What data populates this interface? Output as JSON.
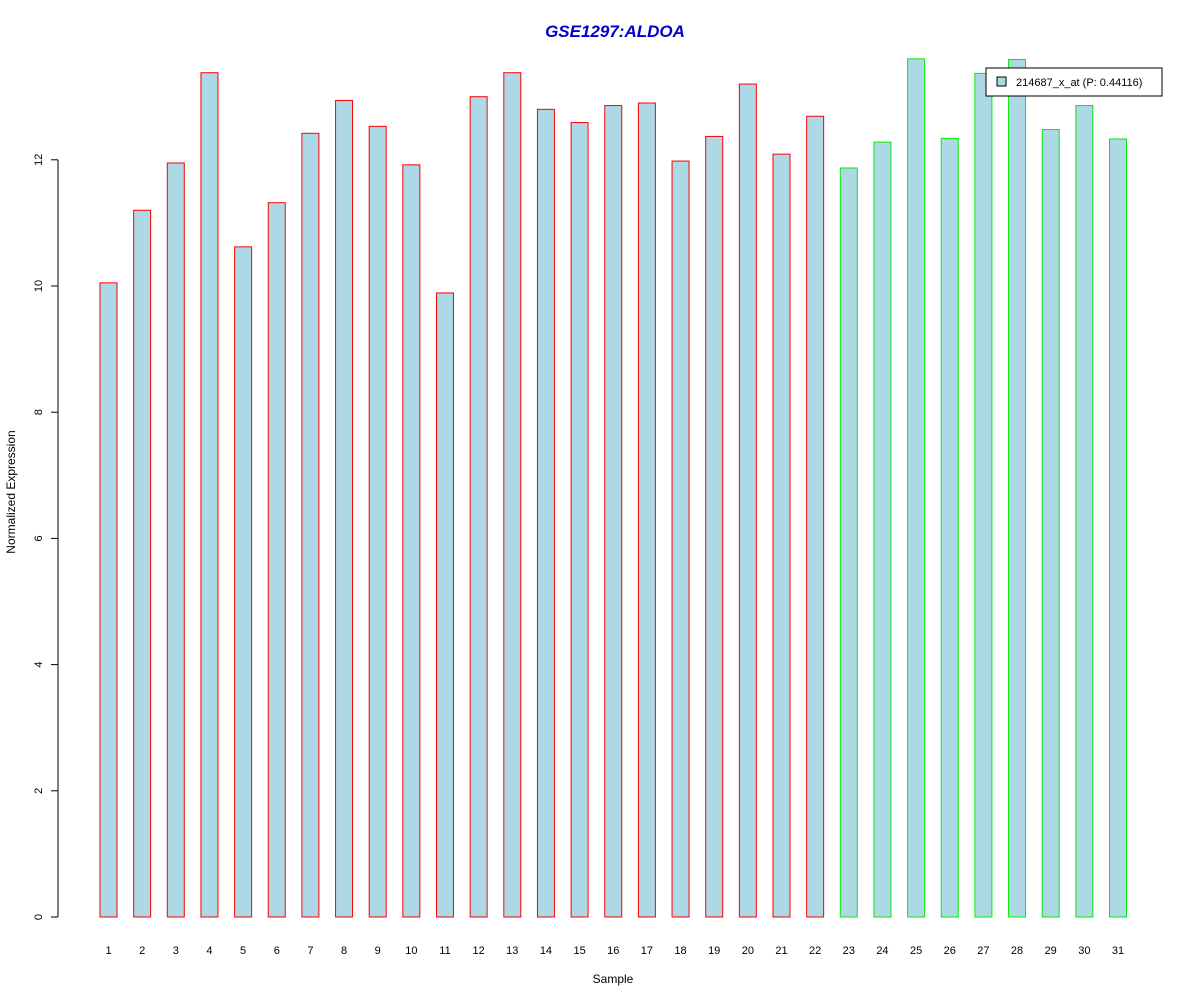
{
  "chart_data": {
    "type": "bar",
    "title": "GSE1297:ALDOA",
    "xlabel": "Sample",
    "ylabel": "Normalized Expression",
    "ylim": [
      0,
      13.6
    ],
    "yticks": [
      0,
      2,
      4,
      6,
      8,
      10,
      12
    ],
    "categories": [
      "1",
      "2",
      "3",
      "4",
      "5",
      "6",
      "7",
      "8",
      "9",
      "10",
      "11",
      "12",
      "13",
      "14",
      "15",
      "16",
      "17",
      "18",
      "19",
      "20",
      "21",
      "22",
      "23",
      "24",
      "25",
      "26",
      "27",
      "28",
      "29",
      "30",
      "31"
    ],
    "values": [
      10.05,
      11.2,
      11.95,
      13.38,
      10.62,
      11.32,
      12.42,
      12.94,
      12.53,
      11.92,
      9.89,
      13.0,
      13.38,
      12.8,
      12.59,
      12.86,
      12.9,
      11.98,
      12.37,
      13.2,
      12.09,
      12.69,
      11.87,
      12.28,
      13.6,
      12.34,
      13.37,
      13.59,
      12.48,
      12.86,
      12.33
    ],
    "groups": [
      "a",
      "a",
      "a",
      "a",
      "a",
      "a",
      "a",
      "a",
      "a",
      "a",
      "a",
      "a",
      "a",
      "a",
      "a",
      "a",
      "a",
      "a",
      "a",
      "a",
      "a",
      "a",
      "b",
      "b",
      "b",
      "b",
      "b",
      "b",
      "b",
      "b",
      "b"
    ],
    "grid": false,
    "legend": {
      "placement": "top-right",
      "entries": [
        "214687_x_at (P: 0.44116)"
      ]
    },
    "colors": {
      "fill": "#add8e6",
      "group_a_border": "#ff0000",
      "group_b_border": "#00ee00",
      "title": "#0000cc"
    }
  }
}
